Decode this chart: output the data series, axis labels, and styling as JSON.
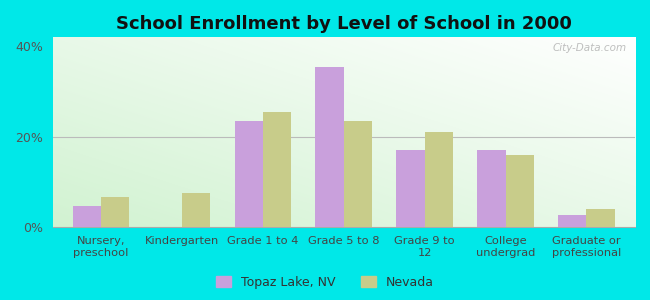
{
  "title": "School Enrollment by Level of School in 2000",
  "categories": [
    "Nursery,\npreschool",
    "Kindergarten",
    "Grade 1 to 4",
    "Grade 5 to 8",
    "Grade 9 to\n12",
    "College\nundergrad",
    "Graduate or\nprofessional"
  ],
  "topaz_values": [
    4.5,
    0.0,
    23.5,
    35.5,
    17.0,
    17.0,
    2.5
  ],
  "nevada_values": [
    6.5,
    7.5,
    25.5,
    23.5,
    21.0,
    16.0,
    4.0
  ],
  "topaz_color": "#c9a0dc",
  "nevada_color": "#c8cc8a",
  "background_outer": "#00e8e8",
  "ylim": [
    0,
    42
  ],
  "yticks": [
    0,
    20,
    40
  ],
  "ytick_labels": [
    "0%",
    "20%",
    "40%"
  ],
  "title_fontsize": 13,
  "label_fontsize": 8.2,
  "legend_labels": [
    "Topaz Lake, NV",
    "Nevada"
  ],
  "watermark": "City-Data.com"
}
